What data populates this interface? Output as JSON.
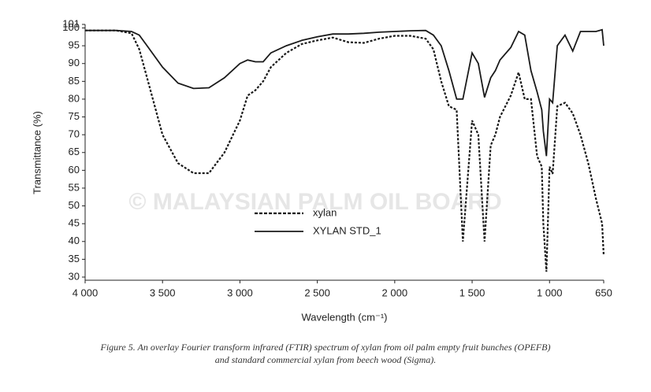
{
  "chart_data": {
    "type": "line",
    "x_label": "Wavelength (cm⁻¹)",
    "y_label": "Transmittance (%)",
    "watermark": "© MALAYSIAN PALM OIL BOARD",
    "caption": [
      "Figure 5. An overlay Fourier transform infrared (FTIR) spectrum of xylan from oil palm empty fruit bunches (OPEFB)",
      "and standard commercial xylan from beech wood (Sigma)."
    ],
    "legend": "center",
    "xlim": [
      4000,
      650
    ],
    "ylim": [
      30,
      101
    ],
    "xticks": [
      {
        "value": 4000,
        "label": "4 000"
      },
      {
        "value": 3500,
        "label": "3 500"
      },
      {
        "value": 3000,
        "label": "3 000"
      },
      {
        "value": 2500,
        "label": "2 500"
      },
      {
        "value": 2000,
        "label": "2 000"
      },
      {
        "value": 1500,
        "label": "1 500"
      },
      {
        "value": 1000,
        "label": "1 000"
      },
      650
    ],
    "yticks": [
      30,
      35,
      40,
      45,
      50,
      55,
      60,
      65,
      70,
      75,
      80,
      85,
      90,
      95,
      100,
      101
    ],
    "x": [
      4000,
      3800,
      3700,
      3650,
      3600,
      3500,
      3400,
      3300,
      3200,
      3100,
      3000,
      2950,
      2900,
      2850,
      2800,
      2700,
      2600,
      2500,
      2400,
      2300,
      2200,
      2100,
      2000,
      1900,
      1800,
      1750,
      1700,
      1650,
      1600,
      1560,
      1500,
      1460,
      1420,
      1380,
      1350,
      1320,
      1250,
      1200,
      1160,
      1120,
      1080,
      1050,
      1040,
      1020,
      1000,
      980,
      950,
      900,
      850,
      800,
      750,
      700,
      660,
      650
    ],
    "series": [
      {
        "name": "xylan",
        "color": "#1a1a1a",
        "line_style": "dashed",
        "values": [
          99.3,
          99.3,
          98.5,
          94,
          86,
          70,
          62,
          59.2,
          59.2,
          65,
          74,
          81,
          82.5,
          85,
          89,
          93,
          95.5,
          96.5,
          97.3,
          96,
          95.8,
          97,
          97.8,
          97.8,
          97,
          94,
          85,
          78,
          77,
          40,
          74,
          70,
          40,
          67,
          70,
          75,
          81,
          87.5,
          80,
          80,
          64,
          61,
          45,
          31.5,
          61,
          59,
          78,
          79,
          76,
          70,
          62,
          52,
          45,
          36
        ]
      },
      {
        "name": "XYLAN STD_1",
        "color": "#1a1a1a",
        "line_style": "solid",
        "values": [
          99.3,
          99.3,
          99,
          98,
          95,
          89,
          84.5,
          83,
          83.2,
          86,
          90,
          91,
          90.5,
          90.5,
          93,
          95,
          96.5,
          97.5,
          98.3,
          98.3,
          98.5,
          98.8,
          99,
          99.2,
          99.3,
          98,
          95,
          88,
          80,
          80,
          93,
          90,
          80.5,
          86,
          88,
          91,
          94.5,
          99,
          98,
          88,
          82,
          77,
          71,
          64,
          80,
          79,
          95,
          98,
          93.5,
          99,
          99,
          99,
          99.5,
          95
        ]
      }
    ]
  }
}
